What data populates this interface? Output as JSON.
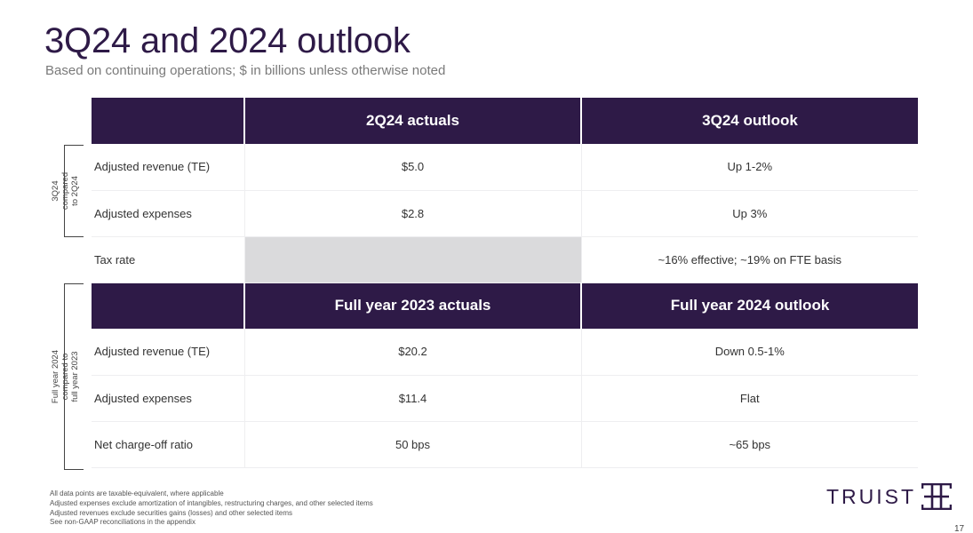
{
  "slide": {
    "title": "3Q24 and 2024 outlook",
    "subtitle": "Based on continuing operations; $ in billions unless otherwise noted",
    "page_number": "17"
  },
  "section1": {
    "side_label": [
      "3Q24",
      "compared",
      "to 2Q24"
    ],
    "header": [
      "",
      "2Q24 actuals",
      "3Q24 outlook"
    ],
    "rows": [
      {
        "label": "Adjusted revenue (TE)",
        "actual": "$5.0",
        "outlook": "Up 1-2%"
      },
      {
        "label": "Adjusted expenses",
        "actual": "$2.8",
        "outlook": "Up 3%"
      },
      {
        "label": "Tax rate",
        "actual": "",
        "outlook": "~16% effective; ~19% on FTE basis"
      }
    ]
  },
  "section2": {
    "side_label": [
      "Full year 2024",
      "compared to",
      "full year 2023"
    ],
    "header": [
      "",
      "Full year 2023 actuals",
      "Full year 2024 outlook"
    ],
    "rows": [
      {
        "label": "Adjusted revenue (TE)",
        "actual": "$20.2",
        "outlook": "Down 0.5-1%"
      },
      {
        "label": "Adjusted expenses",
        "actual": "$11.4",
        "outlook": "Flat"
      },
      {
        "label": "Net charge-off ratio",
        "actual": "50 bps",
        "outlook": "~65 bps"
      }
    ]
  },
  "footnotes": [
    "All data points are taxable-equivalent, where applicable",
    "Adjusted expenses exclude amortization of intangibles, restructuring charges, and other selected items",
    "Adjusted revenues exclude securities gains (losses) and other selected items",
    "See non-GAAP reconciliations in the appendix"
  ],
  "logo": {
    "text": "TRUIST",
    "icon": "truist-logo-icon",
    "color": "#2e1a47"
  },
  "colors": {
    "header_bg": "#2e1a47",
    "header_text": "#ffffff",
    "tax_rate_actual_cell": "#dadadc"
  }
}
